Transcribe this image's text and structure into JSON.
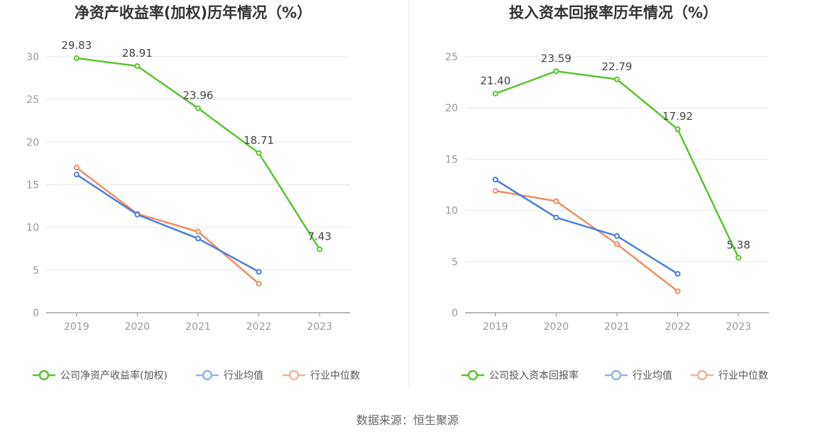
{
  "source_text": "数据来源：恒生聚源",
  "chart_data": [
    {
      "type": "line",
      "title": "净资产收益率(加权)历年情况（%）",
      "categories": [
        "2019",
        "2020",
        "2021",
        "2022",
        "2023"
      ],
      "ylim": [
        0,
        30
      ],
      "yticks": [
        0,
        5,
        10,
        15,
        20,
        25,
        30
      ],
      "grid": true,
      "legend_position": "bottom",
      "series": [
        {
          "name": "公司净资产收益率(加权)",
          "color": "#5ac42f",
          "values": [
            29.83,
            28.91,
            23.96,
            18.71,
            7.43
          ],
          "labels": [
            "29.83",
            "28.91",
            "23.96",
            "18.71",
            "7.43"
          ]
        },
        {
          "name": "行业均值",
          "color": "#4a7ee0",
          "values": [
            16.2,
            11.5,
            8.7,
            4.8,
            null
          ]
        },
        {
          "name": "行业中位数",
          "color": "#f08c60",
          "values": [
            17.0,
            11.6,
            9.5,
            3.4,
            null
          ]
        }
      ]
    },
    {
      "type": "line",
      "title": "投入资本回报率历年情况（%）",
      "categories": [
        "2019",
        "2020",
        "2021",
        "2022",
        "2023"
      ],
      "ylim": [
        0,
        25
      ],
      "yticks": [
        0,
        5,
        10,
        15,
        20,
        25
      ],
      "grid": true,
      "legend_position": "bottom",
      "series": [
        {
          "name": "公司投入资本回报率",
          "color": "#5ac42f",
          "values": [
            21.4,
            23.59,
            22.79,
            17.92,
            5.38
          ],
          "labels": [
            "21.40",
            "23.59",
            "22.79",
            "17.92",
            "5.38"
          ]
        },
        {
          "name": "行业均值",
          "color": "#4a7ee0",
          "values": [
            13.0,
            9.3,
            7.5,
            3.8,
            null
          ]
        },
        {
          "name": "行业中位数",
          "color": "#f08c60",
          "values": [
            11.9,
            10.9,
            6.7,
            2.1,
            null
          ]
        }
      ]
    }
  ]
}
